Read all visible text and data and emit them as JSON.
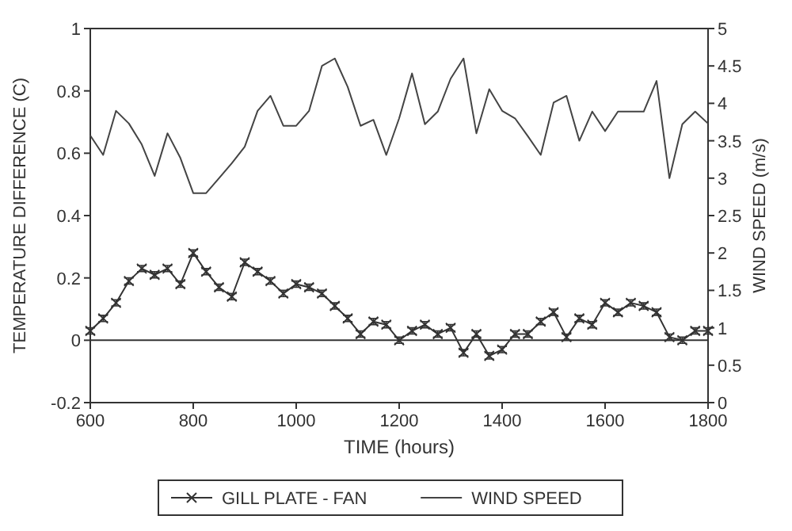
{
  "chart_data": {
    "type": "line",
    "xlabel": "TIME (hours)",
    "ylabel": "TEMPERATURE DIFFERENCE (C)",
    "y2label": "WIND SPEED (m/s)",
    "x": [
      600,
      625,
      650,
      675,
      700,
      725,
      750,
      775,
      800,
      825,
      850,
      875,
      900,
      925,
      950,
      975,
      1000,
      1025,
      1050,
      1075,
      1100,
      1125,
      1150,
      1175,
      1200,
      1225,
      1250,
      1275,
      1300,
      1325,
      1350,
      1375,
      1400,
      1425,
      1450,
      1475,
      1500,
      1525,
      1550,
      1575,
      1600,
      1625,
      1650,
      1675,
      1700,
      1725,
      1750,
      1775,
      1800
    ],
    "series": [
      {
        "name": "GILL PLATE - FAN",
        "color": "#333333",
        "marker": "cross",
        "axis": "y",
        "values": [
          0.03,
          0.07,
          0.12,
          0.19,
          0.23,
          0.21,
          0.23,
          0.18,
          0.28,
          0.22,
          0.17,
          0.14,
          0.25,
          0.22,
          0.19,
          0.15,
          0.18,
          0.17,
          0.15,
          0.11,
          0.07,
          0.02,
          0.06,
          0.05,
          0.0,
          0.03,
          0.05,
          0.02,
          0.04,
          -0.04,
          0.02,
          -0.05,
          -0.03,
          0.02,
          0.02,
          0.06,
          0.09,
          0.01,
          0.07,
          0.05,
          0.12,
          0.09,
          0.12,
          0.11,
          0.09,
          0.01,
          0.0,
          0.03,
          0.03
        ],
        "errors": [
          0.01,
          0.01,
          0.01,
          0.01,
          0.01,
          0.01,
          0.01,
          0.01,
          0.01,
          0.01,
          0.01,
          0.01,
          0.01,
          0.01,
          0.01,
          0.01,
          0.01,
          0.01,
          0.01,
          0.01,
          0.01,
          0.01,
          0.01,
          0.01,
          0.01,
          0.01,
          0.01,
          0.01,
          0.01,
          0.01,
          0.01,
          0.01,
          0.01,
          0.01,
          0.01,
          0.01,
          0.01,
          0.01,
          0.01,
          0.01,
          0.01,
          0.01,
          0.01,
          0.01,
          0.01,
          0.01,
          0.01,
          0.01,
          0.01
        ]
      },
      {
        "name": "WIND SPEED",
        "color": "#444444",
        "marker": "none",
        "axis": "y2",
        "values": [
          3.57,
          3.31,
          3.9,
          3.73,
          3.45,
          3.03,
          3.6,
          3.27,
          2.8,
          2.8,
          3.0,
          3.2,
          3.42,
          3.9,
          4.1,
          3.7,
          3.7,
          3.9,
          4.5,
          4.6,
          4.22,
          3.7,
          3.78,
          3.31,
          3.8,
          4.4,
          3.72,
          3.89,
          4.33,
          4.6,
          3.6,
          4.19,
          3.9,
          3.8,
          3.56,
          3.31,
          4.01,
          4.1,
          3.5,
          3.89,
          3.63,
          3.89,
          3.89,
          3.89,
          4.3,
          3.0,
          3.72,
          3.89,
          3.73
        ]
      }
    ],
    "xlim": [
      600,
      1800
    ],
    "xticks": [
      600,
      800,
      1000,
      1200,
      1400,
      1600,
      1800
    ],
    "ylim": [
      -0.2,
      1
    ],
    "yticks": [
      -0.2,
      0,
      0.2,
      0.4,
      0.6,
      0.8,
      1
    ],
    "y2lim": [
      0,
      5
    ],
    "y2ticks": [
      0,
      0.5,
      1,
      1.5,
      2,
      2.5,
      3,
      3.5,
      4,
      4.5,
      5
    ],
    "ref_lines": [
      {
        "axis": "y",
        "value": 0,
        "color": "#333333"
      }
    ],
    "grid": false,
    "legend": "bottom",
    "line_style": "solid"
  }
}
